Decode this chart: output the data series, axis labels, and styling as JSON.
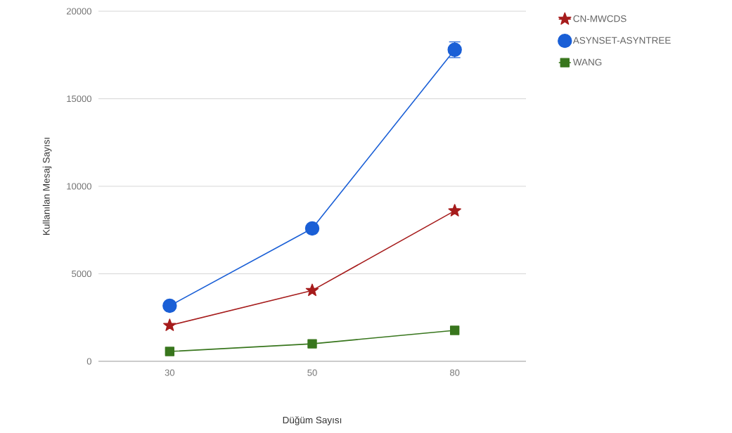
{
  "chart_data": {
    "type": "line",
    "xlabel": "Düğüm Sayısı",
    "ylabel": "Kullanılan Mesaj Sayısı",
    "categories": [
      "30",
      "50",
      "80"
    ],
    "series": [
      {
        "name": "CN-MWCDS",
        "color": "#a61c1c",
        "marker": "star",
        "values": [
          2050,
          4050,
          8600
        ]
      },
      {
        "name": "ASYNSET-ASYNTREE",
        "color": "#1a5fd6",
        "marker": "circle",
        "values": [
          3170,
          7590,
          17800
        ],
        "errors": [
          null,
          null,
          450
        ]
      },
      {
        "name": "WANG",
        "color": "#38761d",
        "marker": "square",
        "values": [
          560,
          1000,
          1770
        ]
      }
    ],
    "ylim": [
      0,
      20000
    ],
    "yticks": [
      0,
      5000,
      10000,
      15000,
      20000
    ],
    "grid": "y",
    "legend": "top right",
    "line_style": "solid"
  }
}
